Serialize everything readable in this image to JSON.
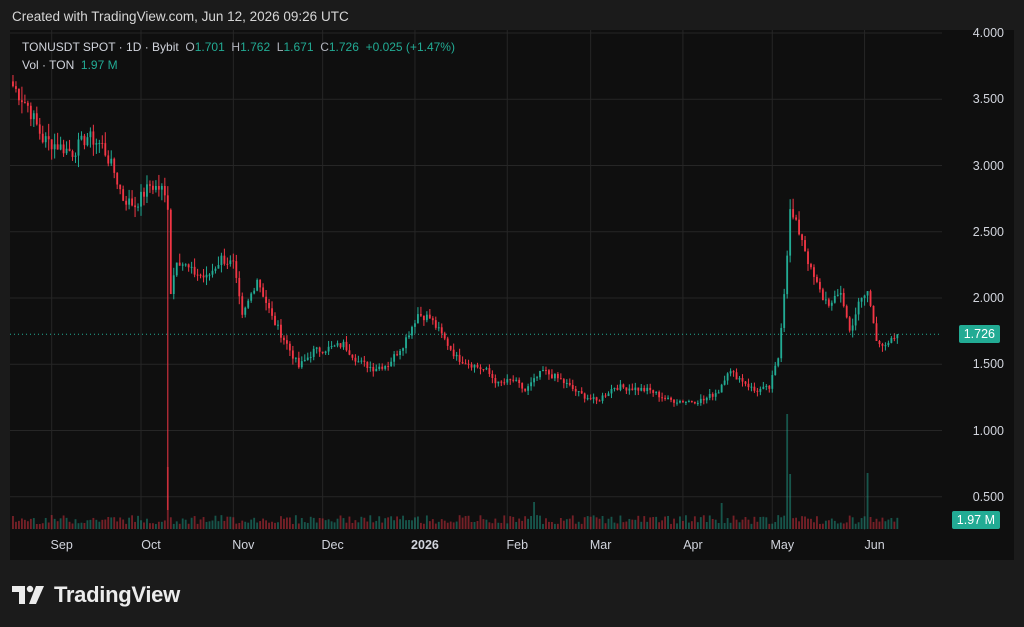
{
  "caption": "Created with TradingView.com, Jun 12, 2026 09:26 UTC",
  "legend": {
    "symbol": "TONUSDT SPOT · 1D · Bybit",
    "o_label": "O",
    "o_value": "1.701",
    "h_label": "H",
    "h_value": "1.762",
    "l_label": "L",
    "l_value": "1.671",
    "c_label": "C",
    "c_value": "1.726",
    "change": "+0.025 (+1.47%)",
    "vol_label": "Vol · TON",
    "vol_value": "1.97 M"
  },
  "brand": {
    "name": "TradingView",
    "logo_icon": "tradingview-logo-icon"
  },
  "colors": {
    "up": "#22ab94",
    "down": "#f23645",
    "background": "#0f0f0f",
    "grid": "#262626",
    "text": "#d1d4dc"
  },
  "chart_data": {
    "type": "candlestick",
    "symbol": "TONUSDT SPOT",
    "interval": "1D",
    "exchange": "Bybit",
    "grid": true,
    "y_ticks": [
      "4.000",
      "3.500",
      "3.000",
      "2.500",
      "2.000",
      "1.500",
      "1.000",
      "0.500"
    ],
    "ylim": [
      0,
      4.0
    ],
    "x_ticks": [
      "Sep",
      "Oct",
      "Nov",
      "Dec",
      "2026",
      "Feb",
      "Mar",
      "Apr",
      "May",
      "Jun"
    ],
    "x_ticks_bold": [
      "2026"
    ],
    "last_price": "1.726",
    "last_volume": "1.97 M",
    "close_path_anchors": [
      [
        "2025-08-19",
        3.6
      ],
      [
        "2025-08-24",
        3.45
      ],
      [
        "2025-08-29",
        3.2
      ],
      [
        "2025-09-03",
        3.15
      ],
      [
        "2025-09-08",
        3.1
      ],
      [
        "2025-09-13",
        3.22
      ],
      [
        "2025-09-18",
        3.15
      ],
      [
        "2025-09-22",
        2.95
      ],
      [
        "2025-09-25",
        2.75
      ],
      [
        "2025-09-29",
        2.7
      ],
      [
        "2025-10-04",
        2.85
      ],
      [
        "2025-10-08",
        2.82
      ],
      [
        "2025-10-10",
        2.7
      ],
      [
        "2025-10-11",
        2.05
      ],
      [
        "2025-10-13",
        2.3
      ],
      [
        "2025-10-18",
        2.2
      ],
      [
        "2025-10-23",
        2.15
      ],
      [
        "2025-10-28",
        2.3
      ],
      [
        "2025-11-01",
        2.25
      ],
      [
        "2025-11-04",
        1.85
      ],
      [
        "2025-11-09",
        2.15
      ],
      [
        "2025-11-14",
        1.85
      ],
      [
        "2025-11-19",
        1.65
      ],
      [
        "2025-11-23",
        1.48
      ],
      [
        "2025-11-28",
        1.6
      ],
      [
        "2025-12-03",
        1.62
      ],
      [
        "2025-12-08",
        1.65
      ],
      [
        "2025-12-13",
        1.52
      ],
      [
        "2025-12-18",
        1.47
      ],
      [
        "2025-12-23",
        1.5
      ],
      [
        "2025-12-28",
        1.65
      ],
      [
        "2026-01-02",
        1.88
      ],
      [
        "2026-01-06",
        1.85
      ],
      [
        "2026-01-10",
        1.72
      ],
      [
        "2026-01-15",
        1.55
      ],
      [
        "2026-01-20",
        1.5
      ],
      [
        "2026-01-25",
        1.45
      ],
      [
        "2026-01-29",
        1.35
      ],
      [
        "2026-02-03",
        1.38
      ],
      [
        "2026-02-07",
        1.3
      ],
      [
        "2026-02-13",
        1.45
      ],
      [
        "2026-02-19",
        1.38
      ],
      [
        "2026-02-25",
        1.28
      ],
      [
        "2026-03-03",
        1.22
      ],
      [
        "2026-03-09",
        1.33
      ],
      [
        "2026-03-15",
        1.32
      ],
      [
        "2026-03-21",
        1.3
      ],
      [
        "2026-03-27",
        1.23
      ],
      [
        "2026-04-02",
        1.22
      ],
      [
        "2026-04-08",
        1.23
      ],
      [
        "2026-04-13",
        1.3
      ],
      [
        "2026-04-16",
        1.45
      ],
      [
        "2026-04-21",
        1.38
      ],
      [
        "2026-04-25",
        1.3
      ],
      [
        "2026-04-30",
        1.32
      ],
      [
        "2026-05-03",
        1.55
      ],
      [
        "2026-05-05",
        2.05
      ],
      [
        "2026-05-07",
        2.65
      ],
      [
        "2026-05-11",
        2.45
      ],
      [
        "2026-05-14",
        2.2
      ],
      [
        "2026-05-18",
        2.0
      ],
      [
        "2026-05-21",
        1.95
      ],
      [
        "2026-05-24",
        2.05
      ],
      [
        "2026-05-27",
        1.75
      ],
      [
        "2026-05-30",
        1.95
      ],
      [
        "2026-06-02",
        2.05
      ],
      [
        "2026-06-05",
        1.7
      ],
      [
        "2026-06-08",
        1.62
      ],
      [
        "2026-06-12",
        1.726
      ]
    ],
    "volume_spikes": [
      [
        "2025-10-10",
        0.62
      ],
      [
        "2026-05-06",
        1.15
      ],
      [
        "2026-05-07",
        0.55
      ],
      [
        "2026-06-02",
        0.56
      ],
      [
        "2026-02-10",
        0.27
      ],
      [
        "2026-04-14",
        0.26
      ]
    ]
  }
}
